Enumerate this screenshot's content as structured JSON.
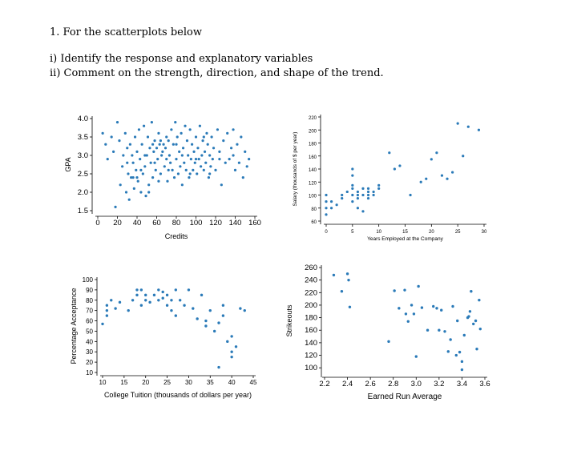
{
  "question": {
    "heading": "1. For the scatterplots below",
    "part_i": "i) Identify the response and explanatory variables",
    "part_ii": "ii) Comment on the strength, direction, and shape of the trend."
  },
  "colors": {
    "point": "#2a7ab8",
    "axis": "#000000"
  },
  "chart_data": [
    {
      "type": "scatter",
      "xlabel": "Credits",
      "ylabel": "GPA",
      "xlim": [
        0,
        160
      ],
      "ylim": [
        1.5,
        4.0
      ],
      "xticks": [
        "0",
        "20",
        "40",
        "60",
        "80",
        "100",
        "120",
        "140",
        "160"
      ],
      "yticks": [
        "1.5",
        "2.0",
        "2.5",
        "3.0",
        "3.5",
        "4.0"
      ],
      "points": [
        [
          5,
          3.6
        ],
        [
          8,
          3.3
        ],
        [
          10,
          2.9
        ],
        [
          14,
          3.5
        ],
        [
          16,
          3.1
        ],
        [
          18,
          1.6
        ],
        [
          20,
          3.9
        ],
        [
          22,
          3.4
        ],
        [
          23,
          2.2
        ],
        [
          25,
          2.7
        ],
        [
          26,
          3.0
        ],
        [
          28,
          3.6
        ],
        [
          29,
          2.0
        ],
        [
          30,
          3.2
        ],
        [
          31,
          2.5
        ],
        [
          32,
          1.8
        ],
        [
          33,
          3.3
        ],
        [
          34,
          2.4
        ],
        [
          35,
          3.0
        ],
        [
          36,
          2.8
        ],
        [
          37,
          2.1
        ],
        [
          38,
          3.5
        ],
        [
          39,
          2.6
        ],
        [
          40,
          3.1
        ],
        [
          41,
          2.3
        ],
        [
          42,
          3.7
        ],
        [
          43,
          2.9
        ],
        [
          44,
          2.0
        ],
        [
          45,
          3.3
        ],
        [
          46,
          2.5
        ],
        [
          47,
          3.8
        ],
        [
          48,
          2.7
        ],
        [
          49,
          1.9
        ],
        [
          50,
          3.0
        ],
        [
          51,
          3.5
        ],
        [
          52,
          2.2
        ],
        [
          53,
          3.2
        ],
        [
          54,
          2.8
        ],
        [
          55,
          3.9
        ],
        [
          56,
          2.4
        ],
        [
          57,
          3.1
        ],
        [
          58,
          3.4
        ],
        [
          59,
          2.6
        ],
        [
          60,
          3.2
        ],
        [
          61,
          2.9
        ],
        [
          62,
          3.6
        ],
        [
          63,
          3.3
        ],
        [
          64,
          2.5
        ],
        [
          65,
          3.0
        ],
        [
          66,
          3.1
        ],
        [
          67,
          3.3
        ],
        [
          68,
          2.7
        ],
        [
          69,
          3.2
        ],
        [
          70,
          3.5
        ],
        [
          71,
          2.3
        ],
        [
          72,
          3.4
        ],
        [
          73,
          3.0
        ],
        [
          74,
          2.8
        ],
        [
          75,
          3.7
        ],
        [
          76,
          2.6
        ],
        [
          77,
          3.3
        ],
        [
          78,
          2.4
        ],
        [
          79,
          3.9
        ],
        [
          80,
          2.9
        ],
        [
          81,
          3.5
        ],
        [
          82,
          2.5
        ],
        [
          83,
          3.1
        ],
        [
          84,
          2.7
        ],
        [
          85,
          3.6
        ],
        [
          86,
          2.2
        ],
        [
          87,
          3.2
        ],
        [
          88,
          2.8
        ],
        [
          89,
          3.8
        ],
        [
          90,
          2.6
        ],
        [
          91,
          3.4
        ],
        [
          92,
          3.0
        ],
        [
          93,
          2.4
        ],
        [
          94,
          3.7
        ],
        [
          95,
          2.9
        ],
        [
          96,
          3.3
        ],
        [
          97,
          2.6
        ],
        [
          98,
          3.1
        ],
        [
          99,
          2.8
        ],
        [
          100,
          3.5
        ],
        [
          101,
          2.5
        ],
        [
          102,
          3.2
        ],
        [
          103,
          2.9
        ],
        [
          104,
          3.8
        ],
        [
          105,
          2.7
        ],
        [
          106,
          3.0
        ],
        [
          107,
          3.4
        ],
        [
          108,
          2.6
        ],
        [
          109,
          3.1
        ],
        [
          110,
          2.8
        ],
        [
          111,
          3.6
        ],
        [
          112,
          3.3
        ],
        [
          113,
          2.4
        ],
        [
          114,
          3.0
        ],
        [
          115,
          2.7
        ],
        [
          116,
          3.5
        ],
        [
          117,
          2.9
        ],
        [
          118,
          3.2
        ],
        [
          120,
          2.6
        ],
        [
          122,
          3.7
        ],
        [
          124,
          3.1
        ],
        [
          126,
          2.2
        ],
        [
          128,
          3.4
        ],
        [
          130,
          2.8
        ],
        [
          132,
          3.6
        ],
        [
          134,
          2.9
        ],
        [
          136,
          3.2
        ],
        [
          138,
          3.0
        ],
        [
          140,
          2.6
        ],
        [
          142,
          3.3
        ],
        [
          144,
          2.8
        ],
        [
          146,
          3.5
        ],
        [
          148,
          2.4
        ],
        [
          150,
          3.1
        ],
        [
          152,
          2.7
        ],
        [
          154,
          2.9
        ],
        [
          36,
          2.4
        ],
        [
          44,
          2.6
        ],
        [
          52,
          2.0
        ],
        [
          58,
          2.8
        ],
        [
          64,
          3.4
        ],
        [
          72,
          2.6
        ],
        [
          80,
          3.3
        ],
        [
          86,
          3.0
        ],
        [
          94,
          2.5
        ],
        [
          100,
          2.9
        ],
        [
          108,
          3.5
        ],
        [
          114,
          2.5
        ],
        [
          124,
          2.9
        ],
        [
          138,
          3.7
        ],
        [
          30,
          2.8
        ],
        [
          40,
          2.4
        ],
        [
          48,
          3.0
        ],
        [
          56,
          3.3
        ],
        [
          62,
          2.3
        ],
        [
          70,
          2.9
        ]
      ]
    },
    {
      "type": "scatter",
      "xlabel": "Years Employed at the Company",
      "ylabel": "Salary (thousands of $ per year)",
      "xlim": [
        0,
        30
      ],
      "ylim": [
        60,
        220
      ],
      "xticks": [
        "0",
        "5",
        "10",
        "15",
        "20",
        "25",
        "30"
      ],
      "yticks": [
        "60",
        "80",
        "100",
        "120",
        "140",
        "160",
        "180",
        "200",
        "220"
      ],
      "points": [
        [
          0,
          70
        ],
        [
          0,
          80
        ],
        [
          0,
          90
        ],
        [
          0,
          100
        ],
        [
          1,
          80
        ],
        [
          1,
          90
        ],
        [
          2,
          85
        ],
        [
          3,
          95
        ],
        [
          3,
          100
        ],
        [
          4,
          105
        ],
        [
          5,
          90
        ],
        [
          5,
          100
        ],
        [
          5,
          110
        ],
        [
          5,
          115
        ],
        [
          6,
          80
        ],
        [
          6,
          95
        ],
        [
          6,
          100
        ],
        [
          6,
          105
        ],
        [
          7,
          100
        ],
        [
          7,
          110
        ],
        [
          7,
          75
        ],
        [
          8,
          95
        ],
        [
          8,
          100
        ],
        [
          8,
          105
        ],
        [
          8,
          110
        ],
        [
          9,
          100
        ],
        [
          9,
          105
        ],
        [
          10,
          110
        ],
        [
          10,
          115
        ],
        [
          5,
          140
        ],
        [
          5,
          130
        ],
        [
          12,
          165
        ],
        [
          13,
          140
        ],
        [
          14,
          145
        ],
        [
          16,
          100
        ],
        [
          18,
          120
        ],
        [
          19,
          125
        ],
        [
          20,
          155
        ],
        [
          21,
          165
        ],
        [
          22,
          130
        ],
        [
          23,
          125
        ],
        [
          24,
          135
        ],
        [
          25,
          210
        ],
        [
          26,
          160
        ],
        [
          27,
          205
        ],
        [
          29,
          200
        ]
      ]
    },
    {
      "type": "scatter",
      "xlabel": "College Tuition (thousands of dollars per year)",
      "ylabel": "Percentage Acceptance",
      "xlim": [
        10,
        45
      ],
      "ylim": [
        10,
        100
      ],
      "xticks": [
        "10",
        "15",
        "20",
        "25",
        "30",
        "35",
        "40",
        "45"
      ],
      "yticks": [
        "10",
        "20",
        "30",
        "40",
        "50",
        "60",
        "70",
        "80",
        "90",
        "100"
      ],
      "points": [
        [
          10,
          57
        ],
        [
          11,
          65
        ],
        [
          11,
          70
        ],
        [
          11,
          75
        ],
        [
          12,
          80
        ],
        [
          13,
          72
        ],
        [
          14,
          78
        ],
        [
          16,
          70
        ],
        [
          17,
          80
        ],
        [
          18,
          85
        ],
        [
          18,
          90
        ],
        [
          19,
          75
        ],
        [
          19,
          90
        ],
        [
          20,
          80
        ],
        [
          20,
          85
        ],
        [
          21,
          78
        ],
        [
          22,
          85
        ],
        [
          23,
          90
        ],
        [
          23,
          80
        ],
        [
          24,
          88
        ],
        [
          24,
          82
        ],
        [
          25,
          75
        ],
        [
          25,
          85
        ],
        [
          26,
          80
        ],
        [
          26,
          70
        ],
        [
          27,
          65
        ],
        [
          27,
          90
        ],
        [
          28,
          80
        ],
        [
          29,
          75
        ],
        [
          30,
          90
        ],
        [
          31,
          72
        ],
        [
          32,
          62
        ],
        [
          33,
          85
        ],
        [
          34,
          55
        ],
        [
          34,
          60
        ],
        [
          35,
          70
        ],
        [
          36,
          50
        ],
        [
          37,
          58
        ],
        [
          37,
          15
        ],
        [
          38,
          75
        ],
        [
          38,
          65
        ],
        [
          39,
          40
        ],
        [
          40,
          45
        ],
        [
          40,
          25
        ],
        [
          40,
          30
        ],
        [
          41,
          35
        ],
        [
          42,
          72
        ],
        [
          43,
          70
        ]
      ]
    },
    {
      "type": "scatter",
      "xlabel": "Earned Run Average",
      "ylabel": "Strikeouts",
      "xlim": [
        2.2,
        3.6
      ],
      "ylim": [
        90,
        260
      ],
      "xticks": [
        "2.2",
        "2.4",
        "2.6",
        "2.8",
        "3.0",
        "3.2",
        "3.4",
        "3.6"
      ],
      "yticks": [
        "100",
        "120",
        "140",
        "160",
        "180",
        "200",
        "220",
        "240",
        "260"
      ],
      "points": [
        [
          2.28,
          248
        ],
        [
          2.35,
          222
        ],
        [
          2.4,
          250
        ],
        [
          2.41,
          240
        ],
        [
          2.42,
          197
        ],
        [
          2.76,
          142
        ],
        [
          2.81,
          223
        ],
        [
          2.85,
          195
        ],
        [
          2.9,
          224
        ],
        [
          2.91,
          186
        ],
        [
          2.93,
          174
        ],
        [
          2.96,
          200
        ],
        [
          3.0,
          118
        ],
        [
          3.02,
          230
        ],
        [
          3.05,
          196
        ],
        [
          3.1,
          160
        ],
        [
          3.15,
          198
        ],
        [
          3.18,
          195
        ],
        [
          3.22,
          192
        ],
        [
          3.25,
          158
        ],
        [
          3.28,
          126
        ],
        [
          3.3,
          145
        ],
        [
          3.32,
          198
        ],
        [
          3.35,
          120
        ],
        [
          3.38,
          125
        ],
        [
          3.4,
          110
        ],
        [
          3.4,
          97
        ],
        [
          3.42,
          152
        ],
        [
          3.45,
          180
        ],
        [
          3.47,
          190
        ],
        [
          3.48,
          222
        ],
        [
          3.5,
          170
        ],
        [
          3.52,
          175
        ],
        [
          3.53,
          130
        ],
        [
          3.55,
          208
        ],
        [
          3.56,
          162
        ],
        [
          3.46,
          182
        ],
        [
          3.36,
          175
        ],
        [
          3.2,
          160
        ],
        [
          2.98,
          186
        ]
      ]
    }
  ]
}
